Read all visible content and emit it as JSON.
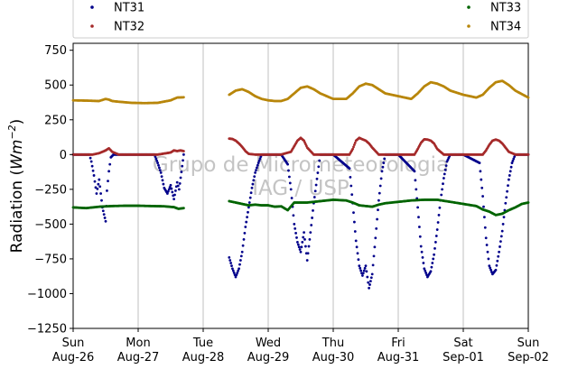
{
  "chart_data": {
    "type": "scatter",
    "ylabel_text": "Radiation (",
    "ylabel_unit_base": "Wm",
    "ylabel_unit_exp": "−2",
    "ylabel_close": ")",
    "ylim": [
      -1250,
      800
    ],
    "yticks": [
      -1250,
      -1000,
      -750,
      -500,
      -250,
      0,
      250,
      500,
      750
    ],
    "ytick_labels": [
      "−1250",
      "−1000",
      "−750",
      "−500",
      "−250",
      "0",
      "250",
      "500",
      "750"
    ],
    "xlim": [
      0,
      7
    ],
    "xticks": [
      0,
      1,
      2,
      3,
      4,
      5,
      6,
      7
    ],
    "xtick_labels": [
      [
        "Sun",
        "Aug-26"
      ],
      [
        "Mon",
        "Aug-27"
      ],
      [
        "Tue",
        "Aug-28"
      ],
      [
        "Wed",
        "Aug-29"
      ],
      [
        "Thu",
        "Aug-30"
      ],
      [
        "Fri",
        "Aug-31"
      ],
      [
        "Sat",
        "Sep-01"
      ],
      [
        "Sun",
        "Sep-02"
      ]
    ],
    "grid": "vertical",
    "legend_position": "top",
    "watermark": [
      "Grupo de Micrometeorologia",
      "IAG / USP"
    ],
    "series": [
      {
        "name": "NT31",
        "color": "#00008b",
        "x": [
          0.0,
          0.25,
          0.28,
          0.32,
          0.36,
          0.4,
          0.45,
          0.5,
          0.52,
          0.55,
          0.58,
          0.62,
          0.67,
          0.75,
          1.0,
          1.25,
          1.3,
          1.35,
          1.4,
          1.45,
          1.5,
          1.55,
          1.6,
          1.63,
          1.7,
          2.4,
          2.45,
          2.5,
          2.55,
          2.6,
          2.65,
          2.7,
          2.75,
          2.8,
          2.85,
          2.9,
          3.0,
          3.2,
          3.3,
          3.35,
          3.4,
          3.45,
          3.5,
          3.55,
          3.6,
          3.65,
          3.7,
          3.8,
          4.0,
          4.25,
          4.3,
          4.35,
          4.4,
          4.45,
          4.5,
          4.55,
          4.6,
          4.65,
          4.7,
          4.75,
          4.8,
          5.0,
          5.25,
          5.3,
          5.35,
          5.4,
          5.45,
          5.5,
          5.55,
          5.6,
          5.65,
          5.7,
          5.75,
          5.8,
          6.0,
          6.25,
          6.3,
          6.35,
          6.4,
          6.45,
          6.5,
          6.55,
          6.6,
          6.65,
          6.7,
          6.75,
          6.8,
          7.0
        ],
        "y": [
          0,
          0,
          -50,
          -150,
          -280,
          -180,
          -380,
          -480,
          -260,
          -120,
          -20,
          0,
          0,
          0,
          0,
          0,
          -60,
          -130,
          -240,
          -280,
          -220,
          -320,
          -200,
          -250,
          0,
          -740,
          -820,
          -880,
          -820,
          -700,
          -520,
          -380,
          -240,
          -130,
          -60,
          0,
          0,
          0,
          -70,
          -250,
          -500,
          -630,
          -700,
          -560,
          -760,
          -560,
          -350,
          0,
          0,
          -100,
          -350,
          -620,
          -800,
          -870,
          -800,
          -960,
          -860,
          -600,
          -330,
          -120,
          0,
          0,
          -120,
          -380,
          -660,
          -820,
          -880,
          -840,
          -720,
          -540,
          -330,
          -170,
          -50,
          0,
          0,
          -60,
          -300,
          -600,
          -800,
          -860,
          -830,
          -700,
          -550,
          -350,
          -180,
          -60,
          0,
          0
        ]
      },
      {
        "name": "NT32",
        "color": "#a52a2a",
        "x": [
          0.0,
          0.3,
          0.4,
          0.5,
          0.55,
          0.6,
          0.7,
          1.0,
          1.3,
          1.5,
          1.55,
          1.6,
          1.65,
          1.7,
          2.4,
          2.45,
          2.5,
          2.55,
          2.6,
          2.65,
          2.7,
          2.8,
          3.0,
          3.2,
          3.35,
          3.4,
          3.45,
          3.5,
          3.55,
          3.6,
          3.7,
          4.0,
          4.25,
          4.3,
          4.35,
          4.4,
          4.45,
          4.5,
          4.55,
          4.6,
          4.7,
          5.0,
          5.25,
          5.3,
          5.35,
          5.4,
          5.45,
          5.5,
          5.55,
          5.6,
          5.7,
          6.0,
          6.3,
          6.35,
          6.4,
          6.45,
          6.5,
          6.55,
          6.6,
          6.65,
          6.7,
          6.8,
          7.0
        ],
        "y": [
          0,
          0,
          10,
          30,
          45,
          20,
          0,
          0,
          0,
          15,
          30,
          25,
          30,
          25,
          115,
          112,
          100,
          80,
          55,
          25,
          5,
          0,
          0,
          0,
          20,
          60,
          100,
          120,
          100,
          50,
          0,
          0,
          0,
          40,
          100,
          120,
          110,
          100,
          80,
          50,
          0,
          0,
          0,
          40,
          85,
          110,
          108,
          100,
          80,
          40,
          0,
          0,
          0,
          30,
          70,
          100,
          108,
          100,
          80,
          50,
          20,
          0,
          0
        ]
      },
      {
        "name": "NT33",
        "color": "#006400",
        "x": [
          0.0,
          0.2,
          0.4,
          0.6,
          0.8,
          1.0,
          1.2,
          1.4,
          1.55,
          1.62,
          1.7,
          2.4,
          2.5,
          2.6,
          2.7,
          2.8,
          2.9,
          3.0,
          3.1,
          3.2,
          3.3,
          3.4,
          3.6,
          3.8,
          4.0,
          4.2,
          4.3,
          4.4,
          4.5,
          4.6,
          4.7,
          4.8,
          5.0,
          5.2,
          5.4,
          5.6,
          5.8,
          6.0,
          6.2,
          6.3,
          6.4,
          6.5,
          6.6,
          6.7,
          6.8,
          6.9,
          7.0
        ],
        "y": [
          -380,
          -385,
          -375,
          -370,
          -368,
          -368,
          -370,
          -372,
          -378,
          -390,
          -385,
          -335,
          -345,
          -355,
          -365,
          -360,
          -365,
          -365,
          -375,
          -372,
          -400,
          -345,
          -345,
          -335,
          -325,
          -330,
          -345,
          -365,
          -370,
          -375,
          -360,
          -350,
          -340,
          -330,
          -325,
          -325,
          -340,
          -355,
          -370,
          -395,
          -410,
          -435,
          -425,
          -400,
          -380,
          -355,
          -345
        ]
      },
      {
        "name": "NT34",
        "color": "#b8860b",
        "x": [
          0.0,
          0.2,
          0.4,
          0.5,
          0.55,
          0.6,
          0.7,
          0.9,
          1.1,
          1.3,
          1.5,
          1.6,
          1.7,
          2.4,
          2.5,
          2.6,
          2.7,
          2.8,
          2.9,
          3.0,
          3.1,
          3.2,
          3.3,
          3.4,
          3.5,
          3.6,
          3.7,
          3.8,
          4.0,
          4.2,
          4.3,
          4.4,
          4.5,
          4.6,
          4.7,
          4.8,
          5.0,
          5.2,
          5.3,
          5.4,
          5.5,
          5.6,
          5.7,
          5.8,
          6.0,
          6.2,
          6.3,
          6.4,
          6.5,
          6.6,
          6.7,
          6.8,
          7.0
        ],
        "y": [
          390,
          388,
          385,
          400,
          395,
          385,
          380,
          372,
          370,
          372,
          390,
          410,
          412,
          430,
          460,
          470,
          450,
          420,
          400,
          390,
          385,
          385,
          400,
          440,
          480,
          490,
          470,
          440,
          400,
          400,
          440,
          490,
          510,
          500,
          470,
          440,
          420,
          400,
          440,
          490,
          520,
          510,
          490,
          460,
          430,
          410,
          430,
          480,
          520,
          530,
          500,
          460,
          410
        ]
      }
    ]
  }
}
